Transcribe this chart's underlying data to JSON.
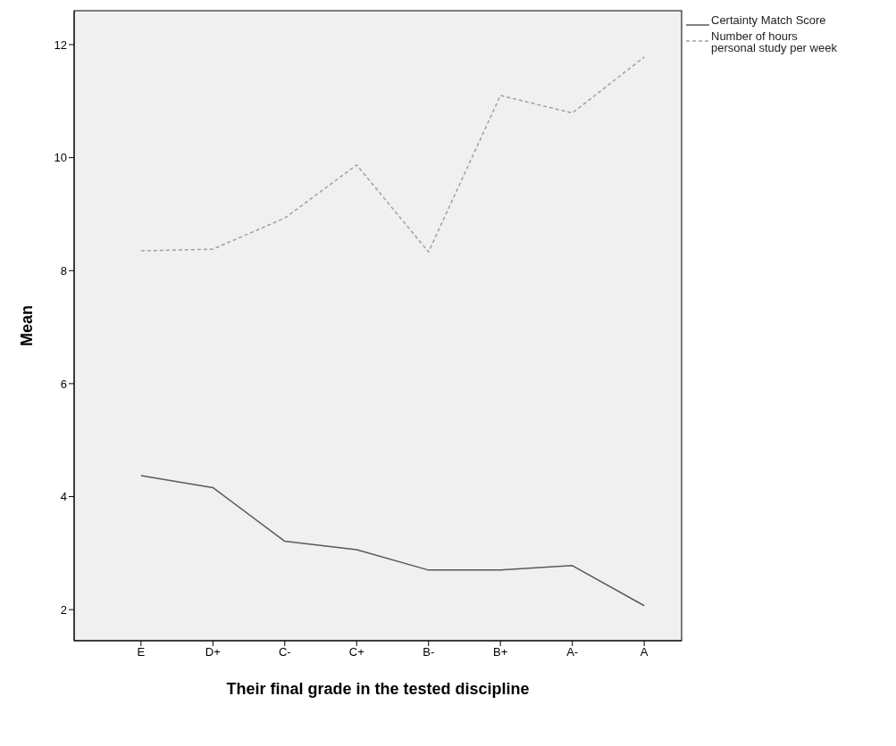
{
  "chart_data": {
    "type": "line",
    "xlabel": "Their final grade in the tested  discipline",
    "ylabel": "Mean",
    "categories": [
      "E",
      "D+",
      "C-",
      "C+",
      "B-",
      "B+",
      "A-",
      "A"
    ],
    "series": [
      {
        "name": "Certainty Match Score",
        "color": "#595959",
        "line_style": "solid",
        "values": [
          4.37,
          4.16,
          3.21,
          3.06,
          2.7,
          2.7,
          2.78,
          2.07
        ]
      },
      {
        "name": "Number of hours personal study per week",
        "color": "#a0a0a0",
        "line_style": "dashed",
        "values": [
          8.35,
          8.38,
          8.93,
          9.87,
          8.33,
          11.1,
          10.79,
          11.78
        ]
      }
    ],
    "ylim": [
      1.45,
      12.6
    ],
    "yticks": [
      2,
      4,
      6,
      8,
      10,
      12
    ],
    "legend": "top right",
    "marker": "none"
  }
}
